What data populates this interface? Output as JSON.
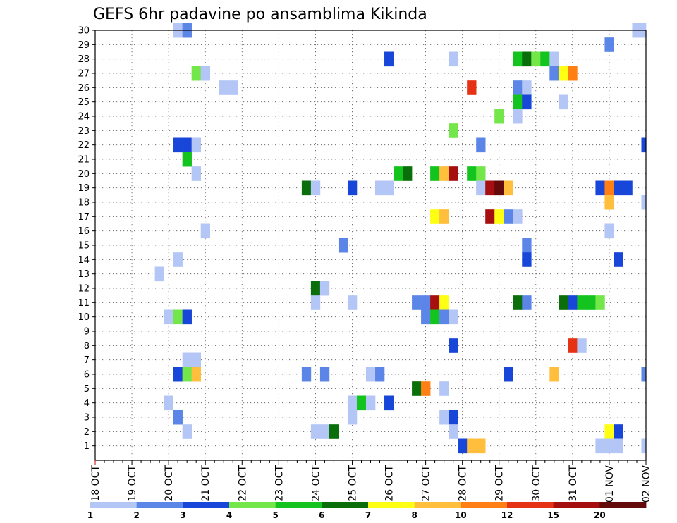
{
  "chart_data": {
    "type": "heatmap",
    "title": "GEFS 6hr padavine po ansamblima Kikinda",
    "x_categories": [
      "18 OCT",
      "19 OCT",
      "20 OCT",
      "21 OCT",
      "22 OCT",
      "23 OCT",
      "24 OCT",
      "25 OCT",
      "26 OCT",
      "27 OCT",
      "28 OCT",
      "29 OCT",
      "30 OCT",
      "31 OCT",
      "01 NOV",
      "02 NOV"
    ],
    "y_categories": [
      "1",
      "2",
      "3",
      "4",
      "5",
      "6",
      "7",
      "8",
      "9",
      "10",
      "11",
      "12",
      "13",
      "14",
      "15",
      "16",
      "17",
      "18",
      "19",
      "20",
      "21",
      "22",
      "23",
      "24",
      "25",
      "26",
      "27",
      "28",
      "29",
      "30"
    ],
    "xlim_steps": [
      0,
      60
    ],
    "ylim_members": [
      0,
      30
    ],
    "colorbar": {
      "labels": [
        "1",
        "2",
        "3",
        "4",
        "5",
        "6",
        "7",
        "8",
        "10",
        "12",
        "15",
        "20"
      ],
      "colors": [
        "#b3c6f5",
        "#5b86e8",
        "#1846d8",
        "#73e64a",
        "#14c41e",
        "#0a6e0a",
        "#ffff14",
        "#ffbe3c",
        "#ff7f14",
        "#e63214",
        "#a50f0f",
        "#640a0a"
      ]
    },
    "cells": [
      {
        "member": 30,
        "step": 9,
        "cls": 1
      },
      {
        "member": 30,
        "step": 10,
        "cls": 2
      },
      {
        "member": 30,
        "step": 59,
        "cls": 1
      },
      {
        "member": 30,
        "step": 60,
        "cls": 1
      },
      {
        "member": 29,
        "step": 56,
        "cls": 2
      },
      {
        "member": 28,
        "step": 32,
        "cls": 3
      },
      {
        "member": 28,
        "step": 39,
        "cls": 1
      },
      {
        "member": 28,
        "step": 46,
        "cls": 5
      },
      {
        "member": 28,
        "step": 47,
        "cls": 6
      },
      {
        "member": 28,
        "step": 48,
        "cls": 4
      },
      {
        "member": 28,
        "step": 49,
        "cls": 5
      },
      {
        "member": 28,
        "step": 50,
        "cls": 1
      },
      {
        "member": 27,
        "step": 11,
        "cls": 4
      },
      {
        "member": 27,
        "step": 12,
        "cls": 1
      },
      {
        "member": 27,
        "step": 50,
        "cls": 2
      },
      {
        "member": 27,
        "step": 51,
        "cls": 7
      },
      {
        "member": 27,
        "step": 52,
        "cls": 9
      },
      {
        "member": 26,
        "step": 14,
        "cls": 1
      },
      {
        "member": 26,
        "step": 15,
        "cls": 1
      },
      {
        "member": 26,
        "step": 41,
        "cls": 10
      },
      {
        "member": 26,
        "step": 46,
        "cls": 2
      },
      {
        "member": 26,
        "step": 47,
        "cls": 1
      },
      {
        "member": 25,
        "step": 46,
        "cls": 5
      },
      {
        "member": 25,
        "step": 47,
        "cls": 3
      },
      {
        "member": 25,
        "step": 51,
        "cls": 1
      },
      {
        "member": 24,
        "step": 44,
        "cls": 4
      },
      {
        "member": 24,
        "step": 46,
        "cls": 1
      },
      {
        "member": 23,
        "step": 39,
        "cls": 4
      },
      {
        "member": 22,
        "step": 9,
        "cls": 3
      },
      {
        "member": 22,
        "step": 10,
        "cls": 3
      },
      {
        "member": 22,
        "step": 11,
        "cls": 1
      },
      {
        "member": 22,
        "step": 42,
        "cls": 2
      },
      {
        "member": 22,
        "step": 60,
        "cls": 3
      },
      {
        "member": 21,
        "step": 10,
        "cls": 5
      },
      {
        "member": 20,
        "step": 11,
        "cls": 1
      },
      {
        "member": 20,
        "step": 33,
        "cls": 5
      },
      {
        "member": 20,
        "step": 34,
        "cls": 6
      },
      {
        "member": 20,
        "step": 37,
        "cls": 5
      },
      {
        "member": 20,
        "step": 38,
        "cls": 8
      },
      {
        "member": 20,
        "step": 39,
        "cls": 11
      },
      {
        "member": 20,
        "step": 41,
        "cls": 5
      },
      {
        "member": 20,
        "step": 42,
        "cls": 4
      },
      {
        "member": 19,
        "step": 23,
        "cls": 6
      },
      {
        "member": 19,
        "step": 24,
        "cls": 1
      },
      {
        "member": 19,
        "step": 28,
        "cls": 3
      },
      {
        "member": 19,
        "step": 31,
        "cls": 1
      },
      {
        "member": 19,
        "step": 32,
        "cls": 1
      },
      {
        "member": 19,
        "step": 42,
        "cls": 1
      },
      {
        "member": 19,
        "step": 43,
        "cls": 11
      },
      {
        "member": 19,
        "step": 44,
        "cls": 12
      },
      {
        "member": 19,
        "step": 45,
        "cls": 8
      },
      {
        "member": 19,
        "step": 55,
        "cls": 3
      },
      {
        "member": 19,
        "step": 56,
        "cls": 9
      },
      {
        "member": 19,
        "step": 57,
        "cls": 3
      },
      {
        "member": 19,
        "step": 58,
        "cls": 3
      },
      {
        "member": 18,
        "step": 56,
        "cls": 8
      },
      {
        "member": 18,
        "step": 60,
        "cls": 1
      },
      {
        "member": 17,
        "step": 37,
        "cls": 7
      },
      {
        "member": 17,
        "step": 38,
        "cls": 8
      },
      {
        "member": 17,
        "step": 43,
        "cls": 11
      },
      {
        "member": 17,
        "step": 44,
        "cls": 7
      },
      {
        "member": 17,
        "step": 45,
        "cls": 2
      },
      {
        "member": 17,
        "step": 46,
        "cls": 1
      },
      {
        "member": 16,
        "step": 12,
        "cls": 1
      },
      {
        "member": 16,
        "step": 56,
        "cls": 1
      },
      {
        "member": 15,
        "step": 27,
        "cls": 2
      },
      {
        "member": 15,
        "step": 47,
        "cls": 2
      },
      {
        "member": 14,
        "step": 9,
        "cls": 1
      },
      {
        "member": 14,
        "step": 47,
        "cls": 3
      },
      {
        "member": 14,
        "step": 57,
        "cls": 3
      },
      {
        "member": 13,
        "step": 7,
        "cls": 1
      },
      {
        "member": 12,
        "step": 24,
        "cls": 6
      },
      {
        "member": 12,
        "step": 25,
        "cls": 1
      },
      {
        "member": 11,
        "step": 24,
        "cls": 1
      },
      {
        "member": 11,
        "step": 28,
        "cls": 1
      },
      {
        "member": 11,
        "step": 35,
        "cls": 2
      },
      {
        "member": 11,
        "step": 36,
        "cls": 2
      },
      {
        "member": 11,
        "step": 37,
        "cls": 11
      },
      {
        "member": 11,
        "step": 38,
        "cls": 7
      },
      {
        "member": 11,
        "step": 46,
        "cls": 6
      },
      {
        "member": 11,
        "step": 47,
        "cls": 2
      },
      {
        "member": 11,
        "step": 51,
        "cls": 6
      },
      {
        "member": 11,
        "step": 52,
        "cls": 3
      },
      {
        "member": 11,
        "step": 53,
        "cls": 5
      },
      {
        "member": 11,
        "step": 54,
        "cls": 5
      },
      {
        "member": 11,
        "step": 55,
        "cls": 4
      },
      {
        "member": 10,
        "step": 8,
        "cls": 1
      },
      {
        "member": 10,
        "step": 9,
        "cls": 4
      },
      {
        "member": 10,
        "step": 10,
        "cls": 3
      },
      {
        "member": 10,
        "step": 36,
        "cls": 2
      },
      {
        "member": 10,
        "step": 37,
        "cls": 5
      },
      {
        "member": 10,
        "step": 38,
        "cls": 2
      },
      {
        "member": 10,
        "step": 39,
        "cls": 1
      },
      {
        "member": 8,
        "step": 39,
        "cls": 3
      },
      {
        "member": 8,
        "step": 52,
        "cls": 10
      },
      {
        "member": 8,
        "step": 53,
        "cls": 1
      },
      {
        "member": 7,
        "step": 10,
        "cls": 1
      },
      {
        "member": 7,
        "step": 11,
        "cls": 1
      },
      {
        "member": 6,
        "step": 9,
        "cls": 3
      },
      {
        "member": 6,
        "step": 10,
        "cls": 4
      },
      {
        "member": 6,
        "step": 11,
        "cls": 8
      },
      {
        "member": 6,
        "step": 23,
        "cls": 2
      },
      {
        "member": 6,
        "step": 25,
        "cls": 2
      },
      {
        "member": 6,
        "step": 30,
        "cls": 1
      },
      {
        "member": 6,
        "step": 31,
        "cls": 2
      },
      {
        "member": 6,
        "step": 45,
        "cls": 3
      },
      {
        "member": 6,
        "step": 50,
        "cls": 8
      },
      {
        "member": 6,
        "step": 60,
        "cls": 2
      },
      {
        "member": 5,
        "step": 35,
        "cls": 6
      },
      {
        "member": 5,
        "step": 36,
        "cls": 9
      },
      {
        "member": 5,
        "step": 38,
        "cls": 1
      },
      {
        "member": 4,
        "step": 8,
        "cls": 1
      },
      {
        "member": 4,
        "step": 28,
        "cls": 1
      },
      {
        "member": 4,
        "step": 29,
        "cls": 5
      },
      {
        "member": 4,
        "step": 30,
        "cls": 1
      },
      {
        "member": 4,
        "step": 32,
        "cls": 3
      },
      {
        "member": 3,
        "step": 9,
        "cls": 2
      },
      {
        "member": 3,
        "step": 28,
        "cls": 1
      },
      {
        "member": 3,
        "step": 38,
        "cls": 1
      },
      {
        "member": 3,
        "step": 39,
        "cls": 3
      },
      {
        "member": 2,
        "step": 10,
        "cls": 1
      },
      {
        "member": 2,
        "step": 24,
        "cls": 1
      },
      {
        "member": 2,
        "step": 25,
        "cls": 1
      },
      {
        "member": 2,
        "step": 26,
        "cls": 6
      },
      {
        "member": 2,
        "step": 39,
        "cls": 1
      },
      {
        "member": 2,
        "step": 56,
        "cls": 7
      },
      {
        "member": 2,
        "step": 57,
        "cls": 3
      },
      {
        "member": 1,
        "step": 40,
        "cls": 3
      },
      {
        "member": 1,
        "step": 41,
        "cls": 8
      },
      {
        "member": 1,
        "step": 42,
        "cls": 8
      },
      {
        "member": 1,
        "step": 55,
        "cls": 1
      },
      {
        "member": 1,
        "step": 56,
        "cls": 1
      },
      {
        "member": 1,
        "step": 57,
        "cls": 1
      },
      {
        "member": 1,
        "step": 60,
        "cls": 1
      }
    ]
  }
}
